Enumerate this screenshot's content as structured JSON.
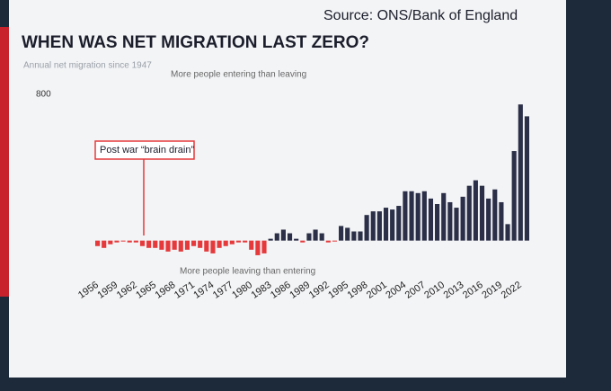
{
  "chart_data": {
    "type": "bar",
    "title": "WHEN WAS NET MIGRATION LAST ZERO?",
    "source": "Source: ONS/Bank of England",
    "subtitle": "Annual net migration since 1947",
    "annotation_top": "More people entering than leaving",
    "annotation_bottom": "More people leaving than entering",
    "annotation_callout": "Post war “brain drain”",
    "x": [
      1956,
      1957,
      1958,
      1959,
      1960,
      1961,
      1962,
      1963,
      1964,
      1965,
      1966,
      1967,
      1968,
      1969,
      1970,
      1971,
      1972,
      1973,
      1974,
      1975,
      1976,
      1977,
      1978,
      1979,
      1980,
      1981,
      1982,
      1983,
      1984,
      1985,
      1986,
      1987,
      1988,
      1989,
      1990,
      1991,
      1992,
      1993,
      1994,
      1995,
      1996,
      1997,
      1998,
      1999,
      2000,
      2001,
      2002,
      2003,
      2004,
      2005,
      2006,
      2007,
      2008,
      2009,
      2010,
      2011,
      2012,
      2013,
      2014,
      2015,
      2016,
      2017,
      2018,
      2019,
      2020,
      2021,
      2022,
      2023
    ],
    "values": [
      -30,
      -40,
      -20,
      -10,
      -5,
      -10,
      -10,
      -30,
      -40,
      -40,
      -50,
      -60,
      -50,
      -60,
      -50,
      -30,
      -40,
      -60,
      -70,
      -40,
      -30,
      -20,
      -10,
      -10,
      -50,
      -80,
      -70,
      10,
      40,
      60,
      40,
      10,
      -10,
      40,
      60,
      40,
      -10,
      -5,
      80,
      70,
      50,
      50,
      140,
      160,
      160,
      180,
      170,
      190,
      270,
      270,
      260,
      270,
      230,
      200,
      260,
      210,
      180,
      240,
      300,
      330,
      300,
      230,
      280,
      210,
      90,
      490,
      745,
      680
    ],
    "xticks": [
      1956,
      1959,
      1962,
      1965,
      1968,
      1971,
      1974,
      1977,
      1980,
      1983,
      1986,
      1989,
      1992,
      1995,
      1998,
      2001,
      2004,
      2007,
      2010,
      2013,
      2016,
      2019,
      2022
    ],
    "positive_color": "#2b2f47",
    "negative_color": "#e5393b",
    "ylim": [
      -100,
      800
    ],
    "yticks": [
      800
    ]
  }
}
